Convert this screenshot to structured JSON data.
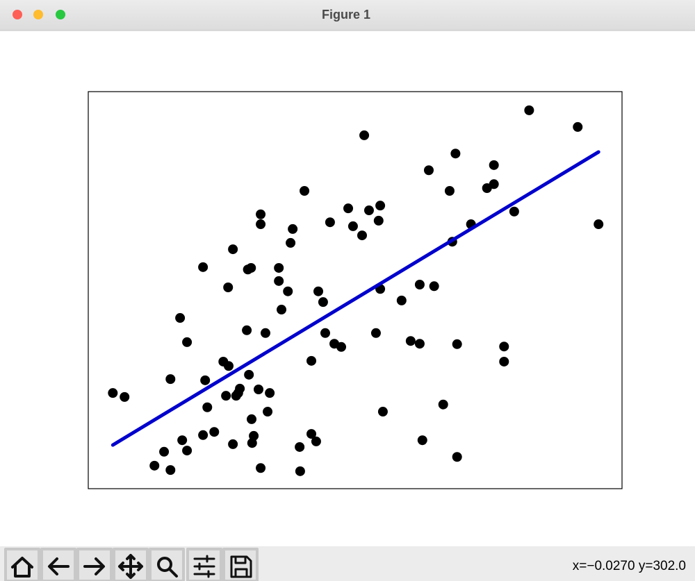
{
  "window": {
    "title": "Figure 1"
  },
  "chart_data": {
    "type": "scatter",
    "xlim": [
      0,
      100
    ],
    "ylim": [
      0,
      100
    ],
    "color": "#000000",
    "x": [
      4.6,
      6.8,
      12.4,
      14.2,
      15.4,
      15.4,
      17.2,
      17.6,
      18.5,
      18.5,
      21.5,
      21.5,
      21.9,
      22.3,
      23.6,
      25.3,
      25.8,
      26.2,
      26.3,
      27.1,
      27.1,
      27.7,
      28.1,
      28.4,
      29.7,
      29.9,
      30.1,
      30.5,
      30.6,
      30.7,
      31.0,
      31.9,
      32.3,
      32.3,
      32.3,
      33.2,
      33.6,
      34.0,
      35.7,
      35.7,
      36.2,
      37.4,
      37.9,
      38.3,
      39.6,
      39.7,
      40.5,
      41.8,
      41.8,
      42.7,
      43.1,
      44.0,
      44.4,
      45.3,
      46.1,
      47.4,
      48.7,
      49.6,
      51.3,
      51.7,
      52.6,
      53.9,
      54.4,
      54.7,
      54.7,
      55.2,
      58.7,
      60.4,
      62.1,
      62.1,
      62.6,
      63.8,
      64.8,
      66.5,
      67.7,
      68.2,
      68.8,
      69.1,
      69.1,
      71.7,
      74.7,
      76.0,
      76.0,
      77.9,
      77.9,
      79.8,
      82.6,
      91.7,
      95.6
    ],
    "values": [
      24.1,
      23.1,
      5.8,
      9.3,
      4.7,
      27.6,
      43.0,
      12.2,
      9.6,
      36.9,
      55.8,
      13.5,
      27.3,
      20.5,
      14.3,
      32.0,
      23.4,
      50.7,
      30.9,
      60.3,
      11.2,
      23.4,
      24.1,
      25.2,
      39.9,
      55.2,
      28.7,
      55.6,
      17.5,
      11.5,
      13.3,
      25.0,
      69.1,
      66.6,
      5.2,
      39.2,
      19.4,
      24.1,
      55.6,
      52.3,
      45.1,
      49.7,
      61.9,
      65.4,
      10.5,
      4.4,
      75.0,
      32.2,
      13.8,
      11.9,
      49.7,
      47.0,
      39.2,
      67.1,
      36.5,
      35.7,
      70.6,
      66.1,
      63.8,
      89.0,
      70.1,
      39.2,
      67.5,
      71.3,
      50.3,
      19.4,
      47.4,
      37.2,
      36.5,
      51.4,
      12.2,
      80.2,
      51.0,
      21.2,
      75.0,
      62.2,
      84.4,
      36.4,
      8.0,
      66.6,
      75.7,
      81.5,
      76.7,
      35.8,
      32.0,
      69.8,
      95.3,
      91.1,
      66.6
    ],
    "fit": {
      "x": [
        4.6,
        95.6
      ],
      "y": [
        11.0,
        84.8
      ],
      "color": "#0000cc"
    }
  },
  "status": "x=−0.0270 y=302.0"
}
